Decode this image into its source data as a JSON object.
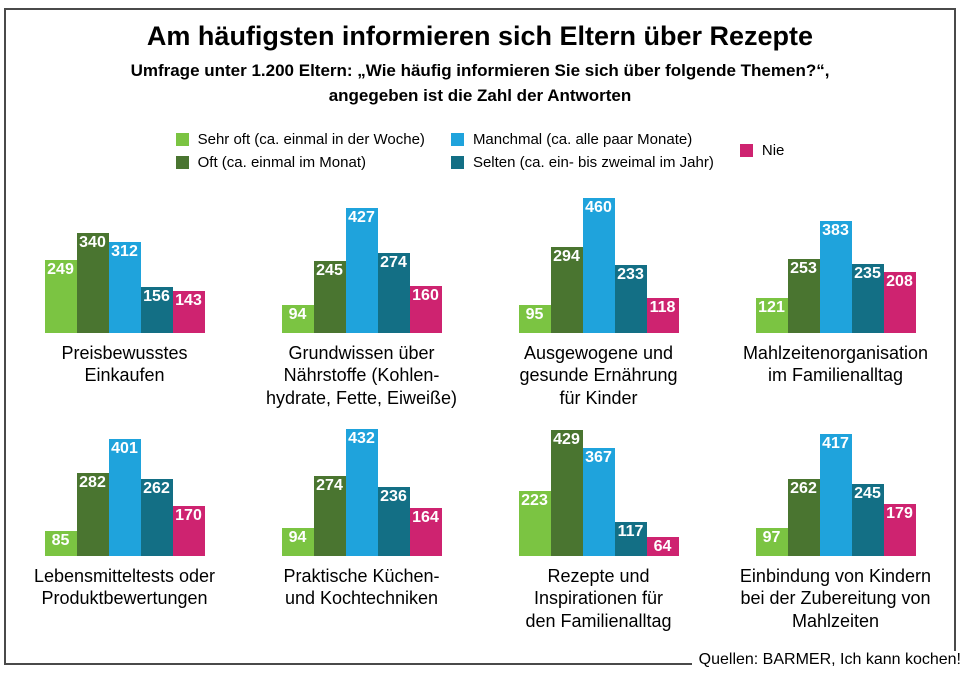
{
  "header": {
    "title": "Am häufigsten informieren sich Eltern über Rezepte",
    "subtitle": "Umfrage unter 1.200 Eltern: „Wie häufig informieren Sie sich über folgende Themen?“,\nangegeben ist die Zahl der Antworten"
  },
  "chart_data": {
    "type": "bar",
    "title": "Am häufigsten informieren sich Eltern über Rezepte",
    "value_labels_shown": true,
    "axes_shown": false,
    "ylim": [
      0,
      460
    ],
    "legend_position": "top",
    "legend": [
      {
        "key": "sehr-oft",
        "label": "Sehr oft (ca. einmal in der Woche)",
        "color": "#7BC442"
      },
      {
        "key": "oft",
        "label": "Oft (ca. einmal im Monat)",
        "color": "#4A7530"
      },
      {
        "key": "manchmal",
        "label": "Manchmal (ca. alle paar Monate)",
        "color": "#1FA3DC"
      },
      {
        "key": "selten",
        "label": "Selten (ca. ein- bis zweimal im Jahr)",
        "color": "#136F85"
      },
      {
        "key": "nie",
        "label": "Nie",
        "color": "#CE2370"
      }
    ],
    "groups": [
      {
        "caption": "Preisbewusstes\nEinkaufen",
        "values": [
          249,
          340,
          312,
          156,
          143
        ]
      },
      {
        "caption": "Grundwissen über\nNährstoffe (Kohlen-\nhydrate, Fette, Eiweiße)",
        "values": [
          94,
          245,
          427,
          274,
          160
        ]
      },
      {
        "caption": "Ausgewogene und\ngesunde Ernährung\nfür Kinder",
        "values": [
          95,
          294,
          460,
          233,
          118
        ]
      },
      {
        "caption": "Mahlzeitenorganisation\nim Familienalltag",
        "values": [
          121,
          253,
          383,
          235,
          208
        ]
      },
      {
        "caption": "Lebensmitteltests oder\nProduktbewertungen",
        "values": [
          85,
          282,
          401,
          262,
          170
        ]
      },
      {
        "caption": "Praktische Küchen-\nund Kochtechniken",
        "values": [
          94,
          274,
          432,
          236,
          164
        ]
      },
      {
        "caption": "Rezepte und\nInspirationen für\nden Familienalltag",
        "values": [
          223,
          429,
          367,
          117,
          64
        ]
      },
      {
        "caption": "Einbindung von Kindern\nbei der Zubereitung von\nMahlzeiten",
        "values": [
          97,
          262,
          417,
          245,
          179
        ]
      }
    ]
  },
  "footer": {
    "source": "Quellen: BARMER, Ich kann kochen!"
  }
}
